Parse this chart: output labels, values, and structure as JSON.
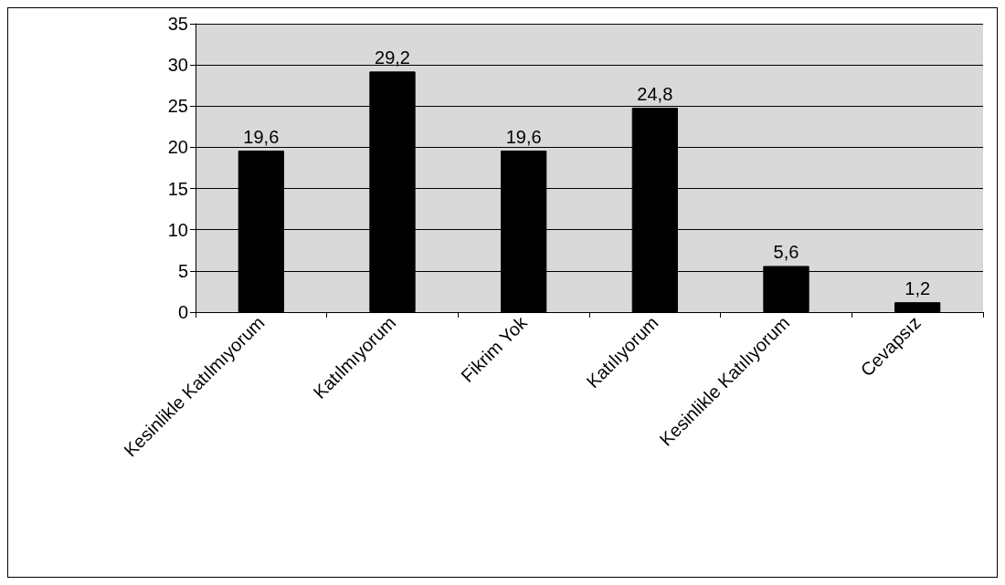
{
  "chart_data": {
    "type": "bar",
    "categories": [
      "Kesinlikle Katılmıyorum",
      "Katılmıyorum",
      "Fikrim Yok",
      "Katılıyorum",
      "Kesinlikle Katılıyorum",
      "Cevapsız"
    ],
    "values": [
      19.6,
      29.2,
      19.6,
      24.8,
      5.6,
      1.2
    ],
    "value_labels": [
      "19,6",
      "29,2",
      "19,6",
      "24,8",
      "5,6",
      "1,2"
    ],
    "color": "#000000",
    "ylim": [
      0,
      35
    ],
    "yticks": [
      0,
      5,
      10,
      15,
      20,
      25,
      30,
      35
    ],
    "grid": "y"
  }
}
